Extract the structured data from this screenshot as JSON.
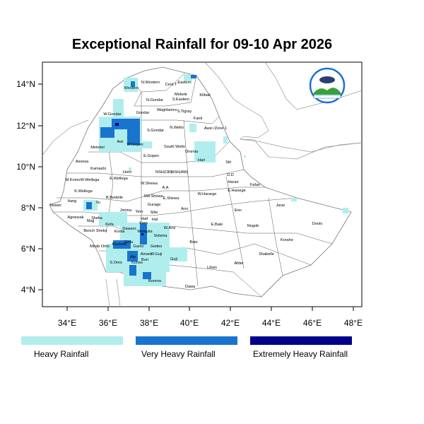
{
  "title": "Exceptional Rainfall for 09-10 Apr 2026",
  "axes": {
    "x_ticks": [
      "34°E",
      "36°E",
      "38°E",
      "40°E",
      "42°E",
      "44°E",
      "46°E",
      "48°E"
    ],
    "y_ticks": [
      "14°N",
      "12°N",
      "10°N",
      "8°N",
      "6°N",
      "4°N"
    ]
  },
  "legend": [
    {
      "label": "Heavy Rainfall",
      "color": "#b0eeee"
    },
    {
      "label": "Very Heavy Rainfall",
      "color": "#1874cd"
    },
    {
      "label": "Extremely Heavy Rainfall",
      "color": "#00008b"
    }
  ],
  "regions": [
    "Western",
    "N.Western",
    "Cent.T",
    "Eastern",
    "Mekele",
    "S.Eastern",
    "Kilbati",
    "N.Gondar",
    "W.Gondar",
    "Gondar",
    "WagHamra",
    "S.Tigray",
    "Fanti",
    "Awsi /Zone 1",
    "N.Wello",
    "S.Gondar",
    "Metekel",
    "Awi",
    "W.Gojam",
    "South Wello",
    "Oromia",
    "Hari",
    "E.Gojam",
    "Assosa",
    "Kamashi",
    "Horo",
    "NSH(OR)",
    "NSH(AM)",
    "Siti",
    "D.D",
    "Harari",
    "M.Komo",
    "W.Wellega",
    "E.Wellega",
    "W.Shewa",
    "A.A",
    "E.Hararge",
    "Fafan",
    "K.Wellega",
    "Nuwer",
    "Itang",
    "Ilu",
    "B.Bedelle",
    "SW.Shewa",
    "E.Shewa",
    "W.Hararge",
    "Arsi",
    "Gurage",
    "Jimma",
    "Yem",
    "Silte",
    "Agnewak",
    "Sheka",
    "Majj",
    "Had",
    "Hal",
    "Kefa",
    "Kem",
    "W.Arsi",
    "E.Bale",
    "Bench Sheko",
    "Konta",
    "Dawaro",
    "Wolayita",
    "Sidama",
    "Gofa",
    "Basketo",
    "Mirab Omo",
    "Bale",
    "Gamo",
    "Gedeo",
    "Amaro",
    "W.Guji",
    "Ale",
    "Konso",
    "Buri",
    "Guji",
    "S.Omo",
    "Liban",
    "Afder",
    "Borena",
    "Dawa",
    "Erer",
    "Nogob",
    "Jarar",
    "Doolo",
    "Korahe",
    "Shabelle"
  ]
}
